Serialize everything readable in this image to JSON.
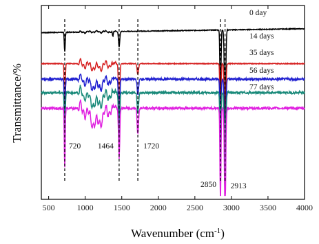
{
  "chart_data": {
    "type": "line",
    "xlabel": "Wavenumber (cm",
    "xlabel_sup": "-1",
    "xlabel_close": ")",
    "ylabel": "Transmittance/%",
    "xlim": [
      400,
      4000
    ],
    "xticks": [
      "500",
      "1000",
      "1500",
      "2000",
      "2500",
      "3000",
      "3500",
      "4000"
    ],
    "x_tick_values": [
      500,
      1000,
      1500,
      2000,
      2500,
      3000,
      3500,
      4000
    ],
    "yticks_shown": false,
    "grid": false,
    "series": [
      {
        "name": "0 day",
        "color": "#000000",
        "baseline": 0.86,
        "noise": 0.004
      },
      {
        "name": "14 days",
        "color": "#d62020",
        "baseline": 0.7,
        "noise": 0.004
      },
      {
        "name": "35 days",
        "color": "#1f1fd0",
        "baseline": 0.62,
        "noise": 0.012
      },
      {
        "name": "56 days",
        "color": "#1a8a7a",
        "baseline": 0.55,
        "noise": 0.012
      },
      {
        "name": "77 days",
        "color": "#e020e0",
        "baseline": 0.47,
        "noise": 0.012
      }
    ],
    "peaks": [
      {
        "x": 720,
        "label": "720"
      },
      {
        "x": 1464,
        "label": "1464"
      },
      {
        "x": 1720,
        "label": "1720"
      },
      {
        "x": 2850,
        "label": "2850"
      },
      {
        "x": 2913,
        "label": "2913"
      }
    ]
  }
}
